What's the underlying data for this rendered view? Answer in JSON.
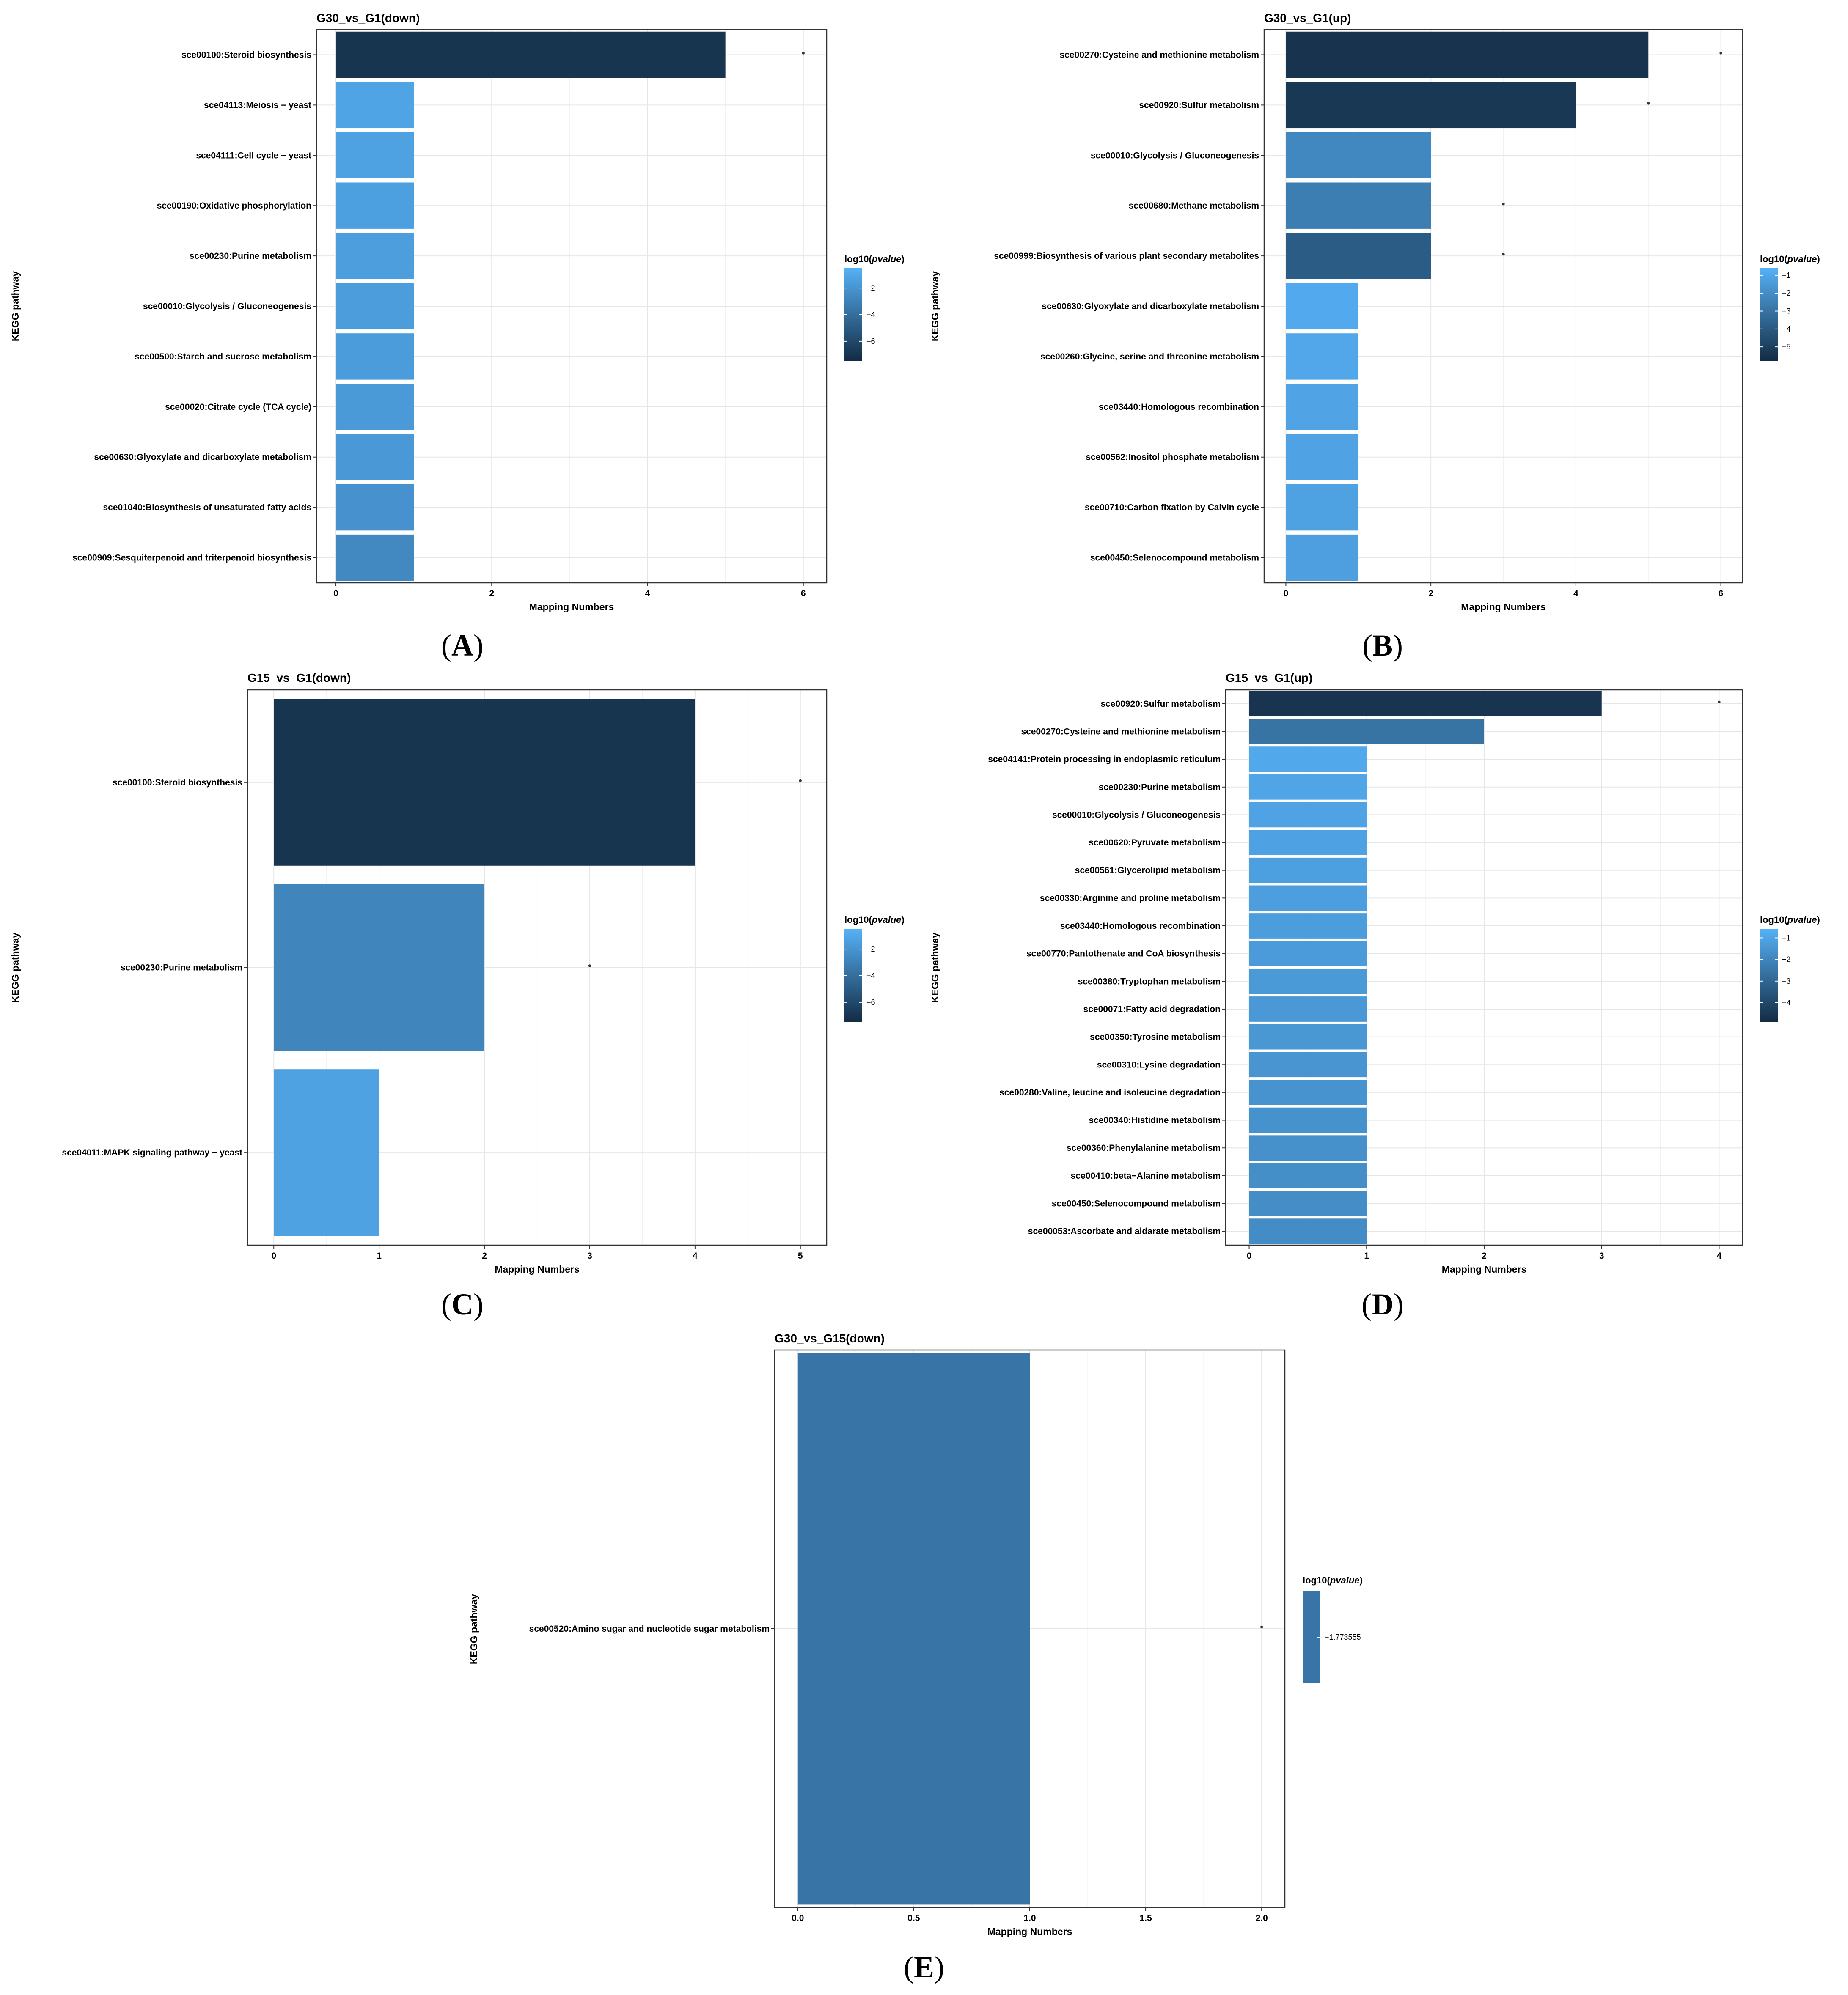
{
  "figure": {
    "panel_labels": [
      "A",
      "B",
      "C",
      "D",
      "E"
    ],
    "legend_title_prefix": "log10(",
    "legend_title_italic": "pvalue",
    "legend_title_suffix": ")",
    "xlabel": "Mapping Numbers",
    "ylabel": "KEGG pathway"
  },
  "chart_data": [
    {
      "type": "bar",
      "orientation": "horizontal",
      "title": "G30_vs_G1(down)",
      "xlabel": "Mapping Numbers",
      "ylabel": "KEGG pathway",
      "xlim": [
        -0.25,
        6.3
      ],
      "xticks": [
        0,
        2,
        4,
        6
      ],
      "categories": [
        "sce00100:Steroid biosynthesis",
        "sce04113:Meiosis − yeast",
        "sce04111:Cell cycle − yeast",
        "sce00190:Oxidative phosphorylation",
        "sce00230:Purine metabolism",
        "sce00010:Glycolysis / Gluconeogenesis",
        "sce00500:Starch and sucrose metabolism",
        "sce00020:Citrate cycle (TCA cycle)",
        "sce00630:Glyoxylate and dicarboxylate metabolism",
        "sce01040:Biosynthesis of unsaturated fatty acids",
        "sce00909:Sesquiterpenoid and triterpenoid biosynthesis"
      ],
      "values": [
        5,
        1,
        1,
        1,
        1,
        1,
        1,
        1,
        1,
        1,
        1
      ],
      "log10_pvalue": [
        -7.0,
        -1.2,
        -1.3,
        -1.4,
        -1.5,
        -1.55,
        -1.6,
        -1.7,
        -1.8,
        -2.1,
        -2.6
      ],
      "significance_marks": [
        6,
        null,
        null,
        null,
        null,
        null,
        null,
        null,
        null,
        null,
        null
      ],
      "legend": {
        "min": -7.5,
        "max": -0.5,
        "ticks": [
          -2,
          -4,
          -6
        ],
        "tick_labels": [
          "−2",
          "−4",
          "−6"
        ]
      }
    },
    {
      "type": "bar",
      "orientation": "horizontal",
      "title": "G30_vs_G1(up)",
      "xlabel": "Mapping Numbers",
      "ylabel": "KEGG pathway",
      "xlim": [
        -0.3,
        6.3
      ],
      "xticks": [
        0,
        2,
        4,
        6
      ],
      "categories": [
        "sce00270:Cysteine and methionine metabolism",
        "sce00920:Sulfur metabolism",
        "sce00010:Glycolysis / Gluconeogenesis",
        "sce00680:Methane metabolism",
        "sce00999:Biosynthesis of various plant secondary metabolites",
        "sce00630:Glyoxylate and dicarboxylate metabolism",
        "sce00260:Glycine, serine and threonine metabolism",
        "sce03440:Homologous recombination",
        "sce00562:Inositol phosphate metabolism",
        "sce00710:Carbon fixation by Calvin cycle",
        "sce00450:Selenocompound metabolism"
      ],
      "values": [
        5,
        4,
        2,
        2,
        2,
        1,
        1,
        1,
        1,
        1,
        1
      ],
      "log10_pvalue": [
        -5.5,
        -5.3,
        -2.2,
        -2.6,
        -3.9,
        -0.9,
        -1.0,
        -1.1,
        -1.15,
        -1.2,
        -1.3
      ],
      "significance_marks": [
        6,
        5,
        null,
        3,
        3,
        null,
        null,
        null,
        null,
        null,
        null
      ],
      "legend": {
        "min": -5.8,
        "max": -0.6,
        "ticks": [
          -1,
          -2,
          -3,
          -4,
          -5
        ],
        "tick_labels": [
          "−1",
          "−2",
          "−3",
          "−4",
          "−5"
        ]
      }
    },
    {
      "type": "bar",
      "orientation": "horizontal",
      "title": "G15_vs_G1(down)",
      "xlabel": "Mapping Numbers",
      "ylabel": "KEGG pathway",
      "xlim": [
        -0.25,
        5.25
      ],
      "xticks": [
        0,
        1,
        2,
        3,
        4,
        5
      ],
      "categories": [
        "sce00100:Steroid biosynthesis",
        "sce00230:Purine metabolism",
        "sce04011:MAPK signaling pathway − yeast"
      ],
      "values": [
        4,
        2,
        1
      ],
      "log10_pvalue": [
        -7.0,
        -2.8,
        -1.3
      ],
      "significance_marks": [
        5,
        3,
        null
      ],
      "legend": {
        "min": -7.5,
        "max": -0.5,
        "ticks": [
          -2,
          -4,
          -6
        ],
        "tick_labels": [
          "−2",
          "−4",
          "−6"
        ]
      }
    },
    {
      "type": "bar",
      "orientation": "horizontal",
      "title": "G15_vs_G1(up)",
      "xlabel": "Mapping Numbers",
      "ylabel": "KEGG pathway",
      "xlim": [
        -0.2,
        4.2
      ],
      "xticks": [
        0,
        1,
        2,
        3,
        4
      ],
      "categories": [
        "sce00920:Sulfur metabolism",
        "sce00270:Cysteine and methionine metabolism",
        "sce04141:Protein processing in endoplasmic reticulum",
        "sce00230:Purine metabolism",
        "sce00010:Glycolysis / Gluconeogenesis",
        "sce00620:Pyruvate metabolism",
        "sce00561:Glycerolipid metabolism",
        "sce00330:Arginine and proline metabolism",
        "sce03440:Homologous recombination",
        "sce00770:Pantothenate and CoA biosynthesis",
        "sce00380:Tryptophan metabolism",
        "sce00071:Fatty acid degradation",
        "sce00350:Tyrosine metabolism",
        "sce00310:Lysine degradation",
        "sce00280:Valine, leucine and isoleucine degradation",
        "sce00340:Histidine metabolism",
        "sce00360:Phenylalanine metabolism",
        "sce00410:beta−Alanine metabolism",
        "sce00450:Selenocompound metabolism",
        "sce00053:Ascorbate and aldarate metabolism"
      ],
      "values": [
        3,
        2,
        1,
        1,
        1,
        1,
        1,
        1,
        1,
        1,
        1,
        1,
        1,
        1,
        1,
        1,
        1,
        1,
        1,
        1
      ],
      "log10_pvalue": [
        -4.6,
        -2.6,
        -0.9,
        -1.0,
        -1.05,
        -1.1,
        -1.15,
        -1.2,
        -1.25,
        -1.3,
        -1.35,
        -1.4,
        -1.45,
        -1.5,
        -1.55,
        -1.6,
        -1.65,
        -1.7,
        -1.75,
        -1.8
      ],
      "significance_marks": [
        4,
        null,
        null,
        null,
        null,
        null,
        null,
        null,
        null,
        null,
        null,
        null,
        null,
        null,
        null,
        null,
        null,
        null,
        null,
        null
      ],
      "legend": {
        "min": -4.9,
        "max": -0.6,
        "ticks": [
          -1,
          -2,
          -3,
          -4
        ],
        "tick_labels": [
          "−1",
          "−2",
          "−3",
          "−4"
        ]
      }
    },
    {
      "type": "bar",
      "orientation": "horizontal",
      "title": "G30_vs_G15(down)",
      "xlabel": "Mapping Numbers",
      "ylabel": "KEGG pathway",
      "xlim": [
        -0.1,
        2.1
      ],
      "xticks": [
        0.0,
        0.5,
        1.0,
        1.5,
        2.0
      ],
      "xtick_labels": [
        "0.0",
        "0.5",
        "1.0",
        "1.5",
        "2.0"
      ],
      "categories": [
        "sce00520:Amino sugar and nucleotide sugar metabolism"
      ],
      "values": [
        1
      ],
      "log10_pvalue": [
        -1.773555
      ],
      "significance_marks": [
        2
      ],
      "legend": {
        "min": -1.773555,
        "max": -1.773555,
        "ticks": [
          -1.773555
        ],
        "tick_labels": [
          "−1.773555"
        ]
      }
    }
  ]
}
